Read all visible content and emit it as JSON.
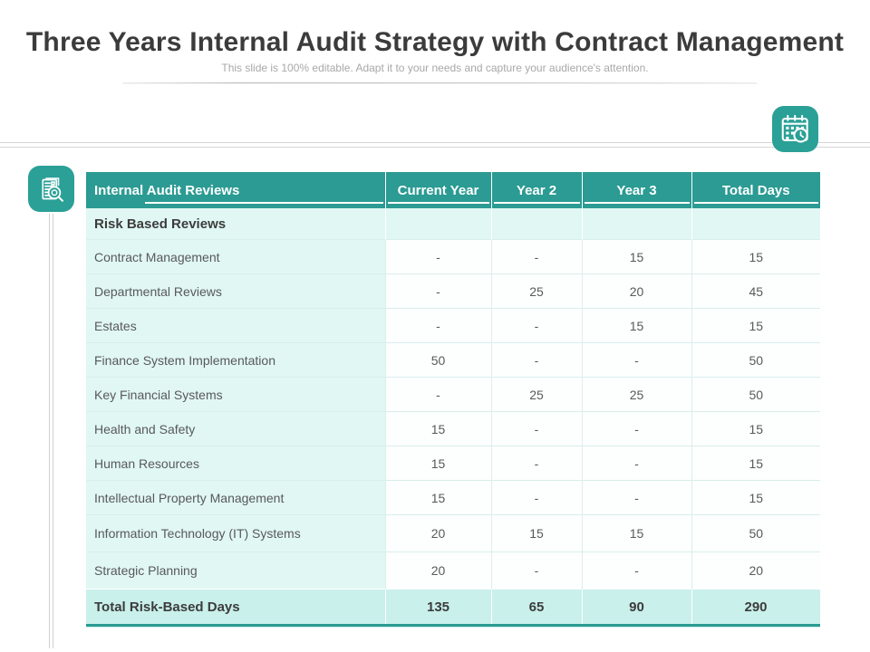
{
  "slide": {
    "title": "Three Years Internal Audit Strategy with Contract Management",
    "subtitle": "This slide is 100% editable. Adapt it to your needs and capture your audience's attention."
  },
  "icons": {
    "calendar_clock": "calendar-clock-icon",
    "audit_search": "audit-document-search-icon"
  },
  "colors": {
    "accent_teal": "#2b9b93",
    "icon_teal": "#2aa096",
    "mint_row": "#e0f7f4",
    "total_row": "#c9f0eb",
    "header_text": "#ffffff",
    "body_text": "#595959",
    "bold_text": "#3c3c3c",
    "subtitle_text": "#a8a8a8",
    "divider_gray": "#d6d6d6"
  },
  "table": {
    "headers": [
      "Internal Audit Reviews",
      "Current Year",
      "Year 2",
      "Year 3",
      "Total Days"
    ],
    "section_label": "Risk Based Reviews",
    "rows": [
      {
        "label": "Contract Management",
        "values": [
          "-",
          "-",
          "15",
          "15"
        ]
      },
      {
        "label": "Departmental Reviews",
        "values": [
          "-",
          "25",
          "20",
          "45"
        ]
      },
      {
        "label": "Estates",
        "values": [
          "-",
          "-",
          "15",
          "15"
        ]
      },
      {
        "label": "Finance System Implementation",
        "values": [
          "50",
          "-",
          "-",
          "50"
        ]
      },
      {
        "label": "Key Financial Systems",
        "values": [
          "-",
          "25",
          "25",
          "50"
        ]
      },
      {
        "label": "Health and Safety",
        "values": [
          "15",
          "-",
          "-",
          "15"
        ]
      },
      {
        "label": "Human Resources",
        "values": [
          "15",
          "-",
          "-",
          "15"
        ]
      },
      {
        "label": "Intellectual Property Management",
        "values": [
          "15",
          "-",
          "-",
          "15"
        ]
      },
      {
        "label": "Information Technology (IT) Systems",
        "values": [
          "20",
          "15",
          "15",
          "50"
        ]
      },
      {
        "label": "Strategic Planning",
        "values": [
          "20",
          "-",
          "-",
          "20"
        ]
      }
    ],
    "total": {
      "label": "Total Risk-Based Days",
      "values": [
        "135",
        "65",
        "90",
        "290"
      ]
    }
  }
}
